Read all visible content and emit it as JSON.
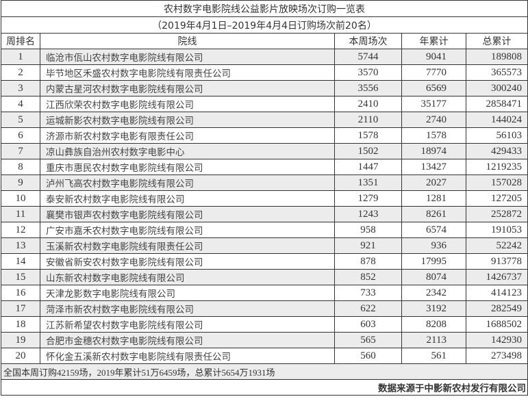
{
  "title": "农村数字电影院线公益影片放映场次订购一览表",
  "subtitle": "（2019年4月1日–2019年4月4日订购场次前20名）",
  "headers": [
    "周排名",
    "院线",
    "本周场次",
    "年累计",
    "总累计"
  ],
  "rows": [
    [
      "1",
      "临沧市佤山农村数字电影院线有限公司",
      "5744",
      "9041",
      "189808"
    ],
    [
      "2",
      "毕节地区禾盛农村数字电影院线有限责任公司",
      "3570",
      "7770",
      "365573"
    ],
    [
      "3",
      "内蒙古星河农村数字电影院线有限公司",
      "3556",
      "6569",
      "300240"
    ],
    [
      "4",
      "江西欣荣农村数字电影院线有限公司",
      "2410",
      "35177",
      "2858471"
    ],
    [
      "5",
      "运城新影农村数字电影院线有限公司",
      "2110",
      "2740",
      "144024"
    ],
    [
      "6",
      "济源市新农村数字电影有限责任公司",
      "1578",
      "1578",
      "56103"
    ],
    [
      "7",
      "凉山彝族自治州农村数字电影中心",
      "1502",
      "18974",
      "429433"
    ],
    [
      "8",
      "重庆市惠民农村数字电影院线有限公司",
      "1447",
      "13427",
      "1219235"
    ],
    [
      "9",
      "泸州飞高农村数字电影院线有限公司",
      "1351",
      "2027",
      "157028"
    ],
    [
      "10",
      "泰安新农村数字电影院线有限公司",
      "1279",
      "1281",
      "127205"
    ],
    [
      "11",
      "襄樊市银声农村数字电影院线有限公司",
      "1243",
      "8261",
      "252872"
    ],
    [
      "12",
      "广安市嘉禾农村数字电影院线有限公司",
      "958",
      "6574",
      "191053"
    ],
    [
      "13",
      "玉溪新农村数字电影院线有限责任公司",
      "921",
      "936",
      "52242"
    ],
    [
      "14",
      "安徽省新安农村数字电影院线有限公司",
      "878",
      "17995",
      "913778"
    ],
    [
      "15",
      "山东新农村数字电影院线有限公司",
      "852",
      "8074",
      "1426737"
    ],
    [
      "16",
      "天津龙影数字电影院线有限公司",
      "733",
      "2342",
      "414123"
    ],
    [
      "17",
      "菏泽市新农村数字电影院线有限公司",
      "622",
      "3192",
      "282549"
    ],
    [
      "18",
      "江苏新希望农村数字电影院线有限公司",
      "603",
      "8208",
      "1688502"
    ],
    [
      "19",
      "合肥市金穗农村数字电影院线有限公司",
      "565",
      "2113",
      "142930"
    ],
    [
      "20",
      "怀化金五溪新农村数字电影院线有限责任公司",
      "560",
      "561",
      "273498"
    ]
  ],
  "summary": "全国本周订购42159场，2019年累计51万6459场，总累计5654万1931场",
  "source": "数据来源于中影新农村发行有限公司"
}
